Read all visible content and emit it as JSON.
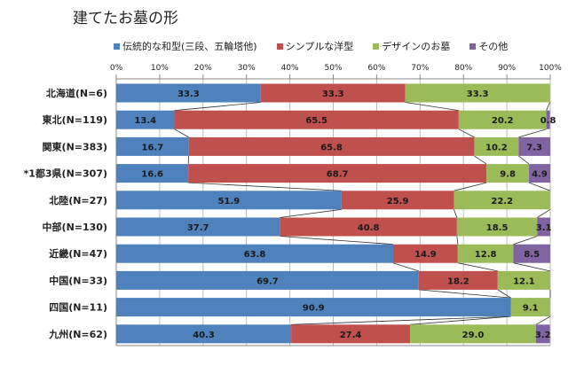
{
  "chart_data": {
    "type": "bar",
    "orientation": "horizontal",
    "stacked": "100%",
    "title": "建てたお墓の形",
    "categories": [
      "北海道(N=6)",
      "東北(N=119)",
      "関東(N=383)",
      "*1都3県(N=307)",
      "北陸(N=27)",
      "中部(N=130)",
      "近畿(N=47)",
      "中国(N=33)",
      "四国(N=11)",
      "九州(N=62)"
    ],
    "series": [
      {
        "name": "伝統的な和型(三段、五輪塔他)",
        "color": "#4f81bd",
        "values": [
          33.3,
          13.4,
          16.7,
          16.6,
          51.9,
          37.7,
          63.8,
          69.7,
          90.9,
          40.3
        ]
      },
      {
        "name": "シンプルな洋型",
        "color": "#c0504d",
        "values": [
          33.3,
          65.5,
          65.8,
          68.7,
          25.9,
          40.8,
          14.9,
          18.2,
          0,
          27.4
        ]
      },
      {
        "name": "デザインのお墓",
        "color": "#9bbb59",
        "values": [
          33.3,
          20.2,
          10.2,
          9.8,
          22.2,
          18.5,
          12.8,
          12.1,
          9.1,
          29.0
        ]
      },
      {
        "name": "その他",
        "color": "#8064a2",
        "values": [
          0,
          0.8,
          7.3,
          4.9,
          0,
          3.1,
          8.5,
          0,
          0,
          3.2
        ]
      }
    ],
    "xlim": [
      0,
      100
    ],
    "xticks": [
      "0%",
      "10%",
      "20%",
      "30%",
      "40%",
      "50%",
      "60%",
      "70%",
      "80%",
      "90%",
      "100%"
    ],
    "x_axis_position": "top",
    "grid": true,
    "series_lines": true,
    "legend_position": "top"
  }
}
